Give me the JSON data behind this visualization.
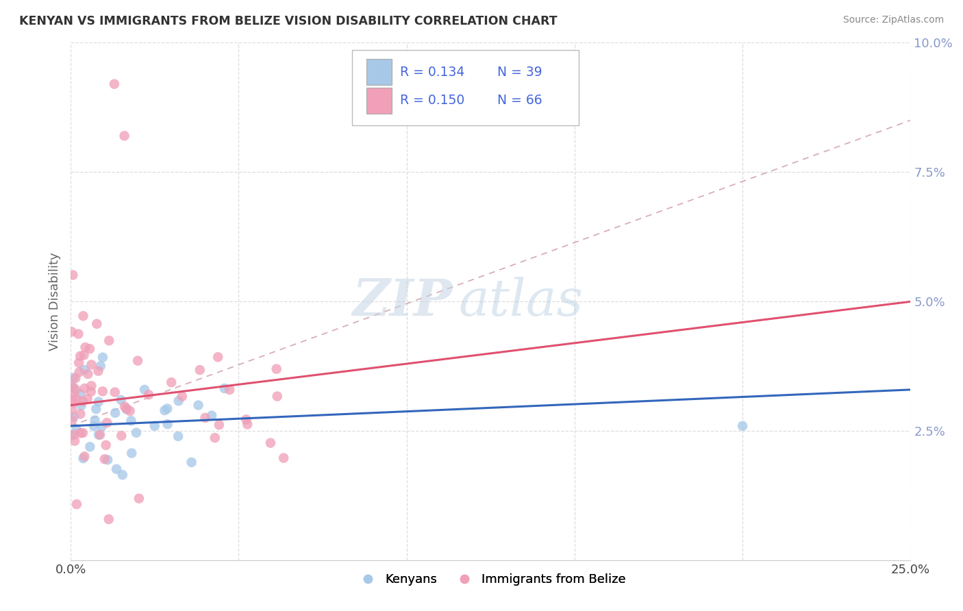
{
  "title": "KENYAN VS IMMIGRANTS FROM BELIZE VISION DISABILITY CORRELATION CHART",
  "source": "Source: ZipAtlas.com",
  "ylabel": "Vision Disability",
  "watermark_zip": "ZIP",
  "watermark_atlas": "atlas",
  "xlim": [
    0.0,
    0.25
  ],
  "ylim": [
    0.0,
    0.1
  ],
  "xticks": [
    0.0,
    0.05,
    0.1,
    0.15,
    0.2,
    0.25
  ],
  "yticks": [
    0.0,
    0.025,
    0.05,
    0.075,
    0.1
  ],
  "xticklabels_show": [
    "0.0%",
    "",
    "",
    "",
    "",
    "25.0%"
  ],
  "yticklabels": [
    "",
    "2.5%",
    "5.0%",
    "7.5%",
    "10.0%"
  ],
  "legend_labels": [
    "Kenyans",
    "Immigrants from Belize"
  ],
  "legend_r": [
    0.134,
    0.15
  ],
  "legend_n": [
    39,
    66
  ],
  "blue_color": "#a8c8e8",
  "pink_color": "#f0a0b8",
  "blue_line_color": "#3366bb",
  "pink_line_color": "#e05070",
  "diag_color": "#d0a0a8",
  "tick_color": "#8899cc",
  "ylabel_color": "#666666",
  "title_color": "#333333",
  "source_color": "#888888",
  "legend_text_color": "#222222",
  "legend_rn_color": "#4466dd",
  "blue_line": {
    "x0": 0.0,
    "y0": 0.026,
    "x1": 0.25,
    "y1": 0.033
  },
  "pink_line": {
    "x0": 0.0,
    "y0": 0.03,
    "x1": 0.25,
    "y1": 0.05
  },
  "diag_line": {
    "x0": 0.0,
    "y0": 0.026,
    "x1": 0.25,
    "y1": 0.085
  }
}
